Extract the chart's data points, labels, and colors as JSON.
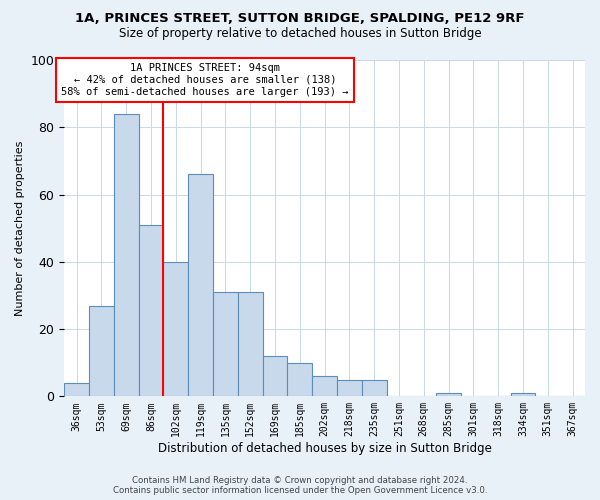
{
  "title_line1": "1A, PRINCES STREET, SUTTON BRIDGE, SPALDING, PE12 9RF",
  "title_line2": "Size of property relative to detached houses in Sutton Bridge",
  "xlabel": "Distribution of detached houses by size in Sutton Bridge",
  "ylabel": "Number of detached properties",
  "categories": [
    "36sqm",
    "53sqm",
    "69sqm",
    "86sqm",
    "102sqm",
    "119sqm",
    "135sqm",
    "152sqm",
    "169sqm",
    "185sqm",
    "202sqm",
    "218sqm",
    "235sqm",
    "251sqm",
    "268sqm",
    "285sqm",
    "301sqm",
    "318sqm",
    "334sqm",
    "351sqm",
    "367sqm"
  ],
  "values": [
    4,
    27,
    84,
    51,
    40,
    66,
    31,
    31,
    12,
    10,
    6,
    5,
    5,
    0,
    0,
    1,
    0,
    0,
    1,
    0,
    0
  ],
  "bar_color": "#c9d9ec",
  "bar_edge_color": "#5b8db8",
  "ylim": [
    0,
    100
  ],
  "yticks": [
    0,
    20,
    40,
    60,
    80,
    100
  ],
  "vline_x": 3.5,
  "vline_color": "red",
  "annotation_title": "1A PRINCES STREET: 94sqm",
  "annotation_line1": "← 42% of detached houses are smaller (138)",
  "annotation_line2": "58% of semi-detached houses are larger (193) →",
  "annotation_box_color": "white",
  "annotation_box_edge": "red",
  "footer_line1": "Contains HM Land Registry data © Crown copyright and database right 2024.",
  "footer_line2": "Contains public sector information licensed under the Open Government Licence v3.0.",
  "background_color": "#e8f0f8",
  "plot_bg_color": "white",
  "grid_color": "#c8d8e8"
}
